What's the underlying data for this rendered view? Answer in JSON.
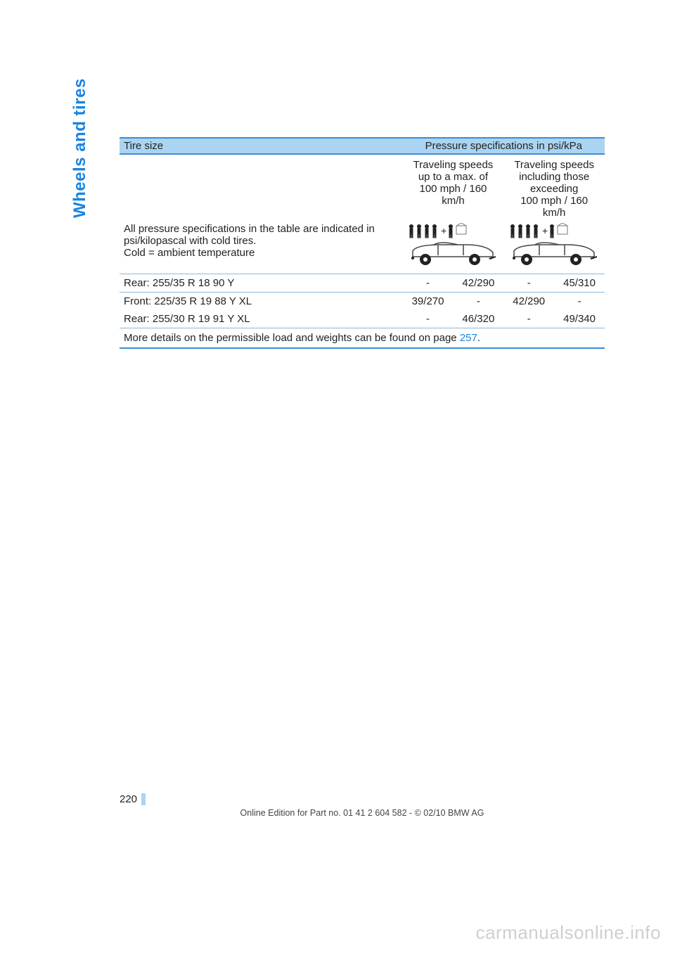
{
  "side_label": "Wheels and tires",
  "table": {
    "header": {
      "col_left": "Tire size",
      "col_right": "Pressure specifications in psi/kPa"
    },
    "subheader": {
      "speed_low": "Traveling speeds\nup to a max. of\n100 mph / 160 km/h",
      "speed_high": "Traveling speeds\nincluding those\nexceeding\n100 mph / 160 km/h"
    },
    "description": "All pressure specifications in the table are indicated in psi/kilopascal with cold tires.\nCold = ambient temperature",
    "rows": [
      {
        "label": "Rear: 255/35 R 18 90 Y",
        "low_front": "-",
        "low_rear": "42/290",
        "high_front": "-",
        "high_rear": "45/310"
      },
      {
        "label": "Front: 225/35 R 19 88 Y XL",
        "low_front": "39/270",
        "low_rear": "-",
        "high_front": "42/290",
        "high_rear": "-"
      },
      {
        "label": "Rear: 255/30 R 19 91 Y XL",
        "low_front": "-",
        "low_rear": "46/320",
        "high_front": "-",
        "high_rear": "49/340"
      }
    ],
    "footer_text": "More details on the permissible load and weights can be found on page ",
    "footer_link": "257",
    "footer_suffix": "."
  },
  "page_number": "220",
  "footer_line": "Online Edition for Part no. 01 41 2 604 582 - © 02/10 BMW AG",
  "watermark": "carmanualsonline.info",
  "colors": {
    "header_bg": "#aad4f2",
    "border_strong": "#3b8cd4",
    "border_light": "#8cb8da",
    "link": "#1b84e0",
    "side_label": "#1b84e0"
  }
}
